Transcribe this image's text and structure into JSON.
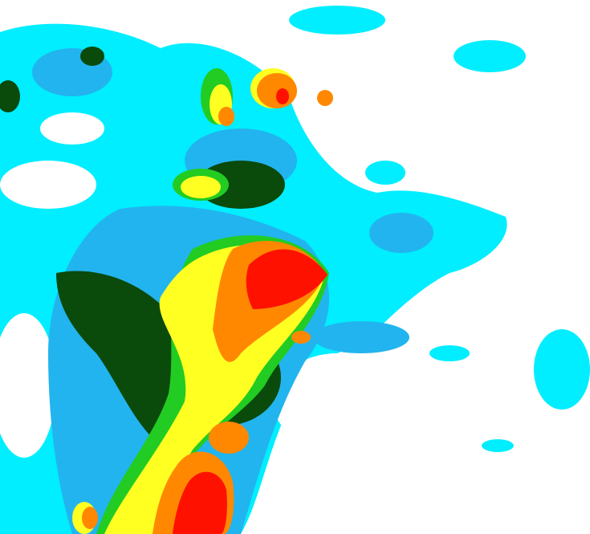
{
  "image": {
    "kind": "weather radar reflectivity imagery",
    "background_color": "#ffffff",
    "palette": {
      "level_1": "#00eeff",
      "level_2": "#22b4ee",
      "level_3": "#22cc22",
      "level_4": "#0a4a0a",
      "level_5": "#ffff22",
      "level_6": "#ff8800",
      "level_7": "#ff1100"
    }
  }
}
